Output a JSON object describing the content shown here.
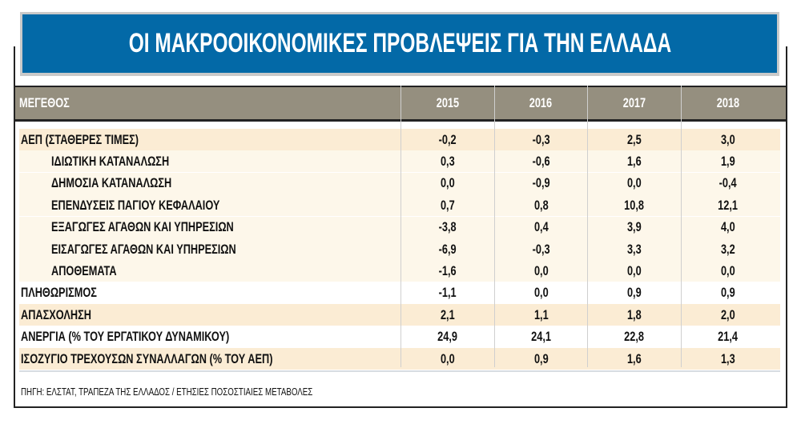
{
  "title": "ΟΙ ΜΑΚΡΟΟΙΚΟΝΟΜΙΚΕΣ ΠΡΟΒΛΕΨΕΙΣ ΓΙΑ ΤΗΝ ΕΛΛΑΔΑ",
  "source": "ΠΗΓΗ: ΕΛΣΤΑΤ, ΤΡΑΠΕΖΑ ΤΗΣ ΕΛΛΑΔΟΣ / ΕΤΗΣΙΕΣ ΠΟΣΟΣΤΙΑΙΕΣ ΜΕΤΑΒΟΛΕΣ",
  "colors": {
    "title_bg": "#0369a7",
    "header_bg": "#958f7f",
    "cream_dark": "#fbecd4",
    "cream_light": "#fdf7ea"
  },
  "chart_data": {
    "type": "table",
    "title": "ΟΙ ΜΑΚΡΟΟΙΚΟΝΟΜΙΚΕΣ ΠΡΟΒΛΕΨΕΙΣ ΓΙΑ ΤΗΝ ΕΛΛΑΔΑ",
    "columns": [
      "ΜΕΓΕΘΟΣ",
      "2015",
      "2016",
      "2017",
      "2018"
    ],
    "rows": [
      {
        "label": "ΑΕΠ (ΣΤΑΘΕΡΕΣ ΤΙΜΕΣ)",
        "indent": false,
        "shade": "dark",
        "values": [
          "-0,2",
          "-0,3",
          "2,5",
          "3,0"
        ]
      },
      {
        "label": "ΙΔΙΩΤΙΚΗ ΚΑΤΑΝΑΛΩΣΗ",
        "indent": true,
        "shade": "light",
        "values": [
          "0,3",
          "-0,6",
          "1,6",
          "1,9"
        ]
      },
      {
        "label": "ΔΗΜΟΣΙΑ ΚΑΤΑΝΑΛΩΣΗ",
        "indent": true,
        "shade": "light",
        "values": [
          "0,0",
          "-0,9",
          "0,0",
          "-0,4"
        ]
      },
      {
        "label": "ΕΠΕΝΔΥΣΕΙΣ ΠΑΓΙΟΥ ΚΕΦΑΛΑΙΟΥ",
        "indent": true,
        "shade": "light",
        "values": [
          "0,7",
          "0,8",
          "10,8",
          "12,1"
        ]
      },
      {
        "label": "ΕΞΑΓΩΓΕΣ ΑΓΑΘΩΝ ΚΑΙ ΥΠΗΡΕΣΙΩΝ",
        "indent": true,
        "shade": "light",
        "values": [
          "-3,8",
          "0,4",
          "3,9",
          "4,0"
        ]
      },
      {
        "label": "ΕΙΣΑΓΩΓΕΣ ΑΓΑΘΩΝ ΚΑΙ ΥΠΗΡΕΣΙΩΝ",
        "indent": true,
        "shade": "light",
        "values": [
          "-6,9",
          "-0,3",
          "3,3",
          "3,2"
        ]
      },
      {
        "label": "ΑΠΟΘΕΜΑΤΑ",
        "indent": true,
        "shade": "light",
        "values": [
          "-1,6",
          "0,0",
          "0,0",
          "0,0"
        ]
      },
      {
        "label": "ΠΛΗΘΩΡΙΣΜΟΣ",
        "indent": false,
        "shade": "none",
        "values": [
          "-1,1",
          "0,0",
          "0,9",
          "0,9"
        ]
      },
      {
        "label": "ΑΠΑΣΧΟΛΗΣΗ",
        "indent": false,
        "shade": "dark",
        "values": [
          "2,1",
          "1,1",
          "1,8",
          "2,0"
        ]
      },
      {
        "label": "ΑΝΕΡΓΙΑ (% ΤΟΥ ΕΡΓΑΤΙΚΟΥ ΔΥΝΑΜΙΚΟΥ)",
        "indent": false,
        "shade": "none",
        "values": [
          "24,9",
          "24,1",
          "22,8",
          "21,4"
        ]
      },
      {
        "label": "ΙΣΟΖΥΓΙΟ ΤΡΕΧΟΥΣΩΝ ΣΥΝΑΛΛΑΓΩΝ (% ΤΟΥ ΑΕΠ)",
        "indent": false,
        "shade": "dark",
        "values": [
          "0,0",
          "0,9",
          "1,6",
          "1,3"
        ]
      }
    ]
  }
}
